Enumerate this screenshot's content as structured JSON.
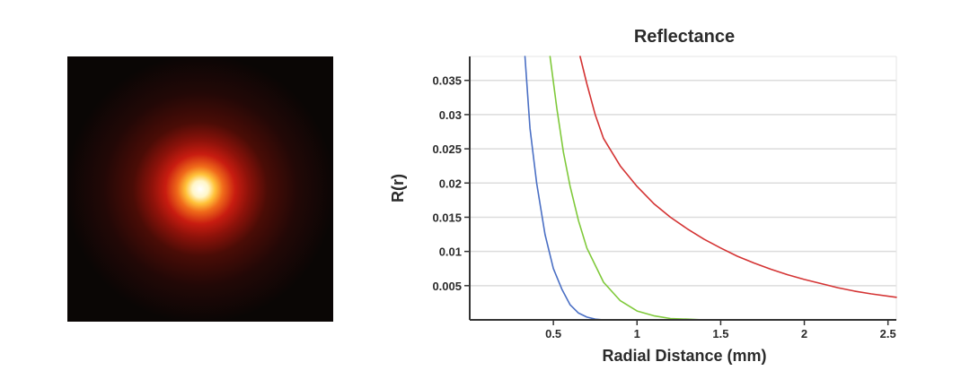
{
  "image_panel": {
    "icon": "diffuse-reflectance-glow",
    "colors": [
      "#ffffff",
      "#ffd23a",
      "#ff7a1a",
      "#c21a10",
      "#4a0c06",
      "#0a0605"
    ]
  },
  "chart_data": {
    "type": "line",
    "title": "Reflectance",
    "xlabel": "Radial Distance (mm)",
    "ylabel": "R(r)",
    "xlim": [
      0,
      2.55
    ],
    "ylim": [
      0,
      0.0385
    ],
    "x_ticks": [
      0.5,
      1,
      1.5,
      2,
      2.5
    ],
    "x_tick_labels": [
      "0.5",
      "1",
      "1.5",
      "2",
      "2.5"
    ],
    "y_ticks": [
      0.005,
      0.01,
      0.015,
      0.02,
      0.025,
      0.03,
      0.035
    ],
    "y_tick_labels": [
      "0.005",
      "0.01",
      "0.015",
      "0.02",
      "0.025",
      "0.03",
      "0.035"
    ],
    "grid": true,
    "legend": "none",
    "series": [
      {
        "color": "#4a6fc4",
        "x": [
          0.33,
          0.36,
          0.4,
          0.45,
          0.5,
          0.55,
          0.6,
          0.65,
          0.7,
          0.75,
          0.8
        ],
        "y": [
          0.0385,
          0.028,
          0.02,
          0.0125,
          0.0075,
          0.0045,
          0.0022,
          0.001,
          0.0004,
          0.0001,
          0.0
        ]
      },
      {
        "color": "#7fc93a",
        "x": [
          0.48,
          0.52,
          0.56,
          0.6,
          0.65,
          0.7,
          0.8,
          0.9,
          1.0,
          1.1,
          1.2,
          1.3,
          1.4,
          1.5
        ],
        "y": [
          0.0385,
          0.031,
          0.0245,
          0.0195,
          0.0145,
          0.0105,
          0.0055,
          0.0028,
          0.0013,
          0.0006,
          0.0002,
          0.0001,
          0.0,
          0.0
        ]
      },
      {
        "color": "#d43333",
        "x": [
          0.66,
          0.7,
          0.75,
          0.8,
          0.9,
          1.0,
          1.1,
          1.2,
          1.3,
          1.4,
          1.5,
          1.6,
          1.7,
          1.8,
          1.9,
          2.0,
          2.1,
          2.2,
          2.3,
          2.4,
          2.55
        ],
        "y": [
          0.0385,
          0.0345,
          0.03,
          0.0265,
          0.0225,
          0.0195,
          0.017,
          0.015,
          0.0133,
          0.0118,
          0.0105,
          0.0093,
          0.0083,
          0.0074,
          0.0066,
          0.0059,
          0.0053,
          0.0047,
          0.0042,
          0.0038,
          0.0033
        ]
      }
    ]
  }
}
